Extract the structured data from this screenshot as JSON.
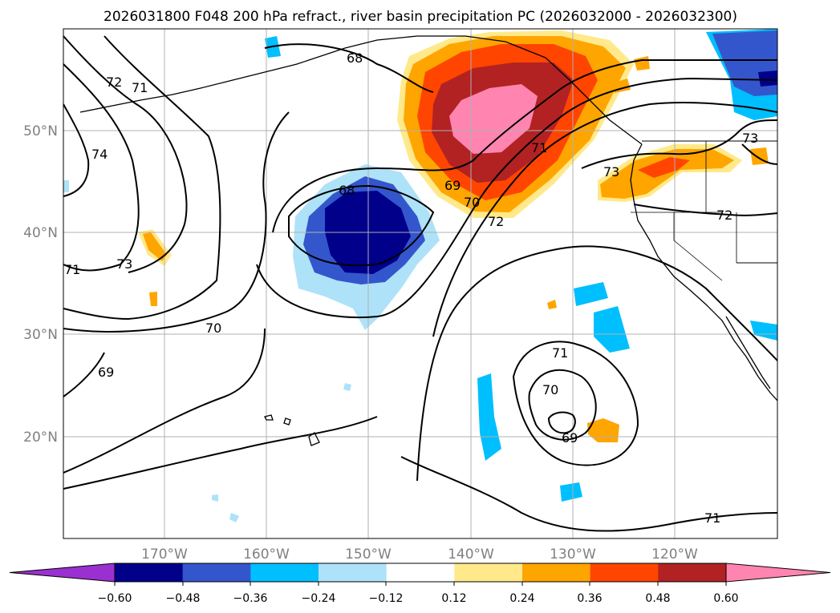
{
  "title": "2026031800 F048 200 hPa refract., river basin precipitation PC (2026032000 - 2026032300)",
  "lat_labels": [
    "50°N",
    "40°N",
    "30°N",
    "20°N"
  ],
  "lon_labels": [
    "170°W",
    "160°W",
    "150°W",
    "140°W",
    "130°W",
    "120°W"
  ],
  "contour_labels": [
    "68",
    "72",
    "71",
    "74",
    "73",
    "71",
    "70",
    "69",
    "68",
    "69",
    "70",
    "71",
    "72",
    "73",
    "72",
    "73",
    "71",
    "70",
    "69",
    "71"
  ],
  "colorbar": {
    "ticks": [
      "−0.60",
      "−0.48",
      "−0.36",
      "−0.24",
      "−0.12",
      "0.12",
      "0.24",
      "0.36",
      "0.48",
      "0.60"
    ],
    "colors": [
      "#9b30d0",
      "#00008b",
      "#3456cc",
      "#00bfff",
      "#aee2f8",
      "#ffffff",
      "#ffe98a",
      "#ffa500",
      "#ff4500",
      "#b22222",
      "#ff85b0"
    ]
  }
}
